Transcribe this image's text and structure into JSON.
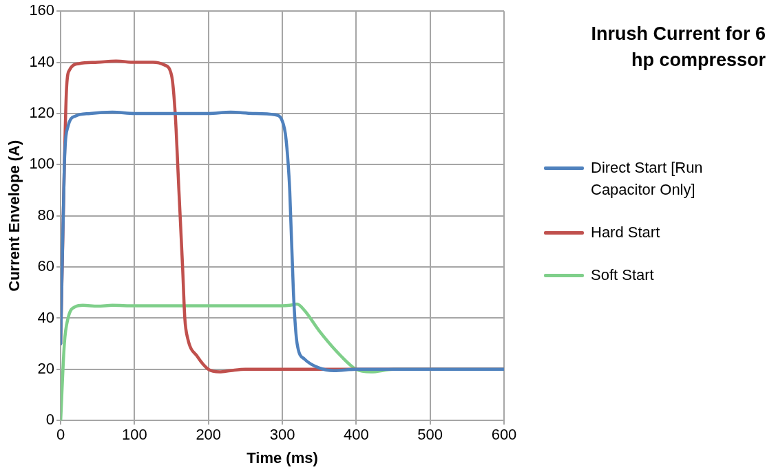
{
  "chart_data": {
    "type": "line",
    "title": "Inrush Current for 6 hp compressor",
    "xlabel": "Time (ms)",
    "ylabel": "Current Envelope (A)",
    "xlim": [
      0,
      600
    ],
    "xticks": [
      0,
      100,
      200,
      300,
      400,
      500,
      600
    ],
    "ylim": [
      0,
      160
    ],
    "yticks": [
      0,
      20,
      40,
      60,
      80,
      100,
      120,
      140,
      160
    ],
    "grid": true,
    "legend": "right",
    "marker": "none",
    "line_style": "solid",
    "series": [
      {
        "name": "Direct Start [Run Capacitor Only]",
        "color": "#4f81bd",
        "x": [
          0,
          5,
          10,
          20,
          40,
          70,
          100,
          200,
          230,
          260,
          290,
          300,
          305,
          310,
          315,
          320,
          330,
          350,
          370,
          400,
          600
        ],
        "values": [
          30,
          100,
          115,
          119,
          120,
          120.5,
          120,
          120,
          120.5,
          120,
          119.5,
          117,
          110,
          90,
          50,
          30,
          24,
          20.5,
          19.5,
          20,
          20
        ]
      },
      {
        "name": "Hard Start",
        "color": "#c0504d",
        "x": [
          0,
          5,
          8,
          12,
          25,
          50,
          75,
          100,
          125,
          140,
          150,
          155,
          160,
          165,
          168,
          172,
          185,
          200,
          215,
          230,
          250,
          600
        ],
        "values": [
          30,
          100,
          130,
          137,
          139.5,
          140,
          140.5,
          140,
          140,
          139,
          135,
          120,
          90,
          60,
          40,
          32,
          25,
          20,
          19,
          19.5,
          20,
          20
        ]
      },
      {
        "name": "Soft Start",
        "color": "#7fcf8a",
        "x": [
          0,
          5,
          10,
          20,
          30,
          50,
          70,
          100,
          200,
          300,
          310,
          320,
          330,
          350,
          380,
          400,
          420,
          450,
          600
        ],
        "values": [
          0,
          30,
          40,
          44.5,
          45,
          44.7,
          45,
          44.8,
          44.8,
          44.8,
          45,
          45.5,
          43,
          35,
          25,
          20,
          19,
          20,
          20
        ]
      }
    ]
  }
}
